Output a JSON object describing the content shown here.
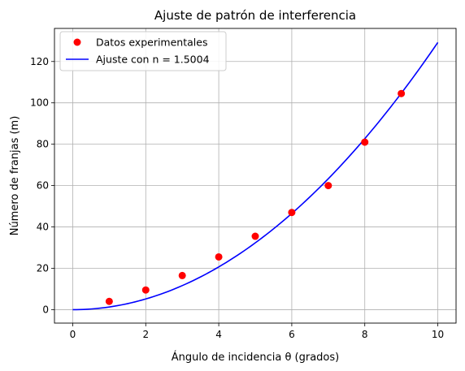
{
  "chart_data": {
    "type": "scatter",
    "title": "Ajuste de patrón de interferencia",
    "xlabel": "Ángulo de incidencia θ (grados)",
    "ylabel": "Número de franjas (m)",
    "xlim": [
      -0.5,
      10.5
    ],
    "ylim": [
      -6.5,
      136
    ],
    "xticks": [
      0,
      2,
      4,
      6,
      8,
      10
    ],
    "yticks": [
      0,
      20,
      40,
      60,
      80,
      100,
      120
    ],
    "grid": true,
    "legend_position": "top-left",
    "series": [
      {
        "name": "Datos experimentales",
        "kind": "scatter",
        "color": "#ff0000",
        "x": [
          1,
          2,
          3,
          4,
          5,
          6,
          7,
          8,
          9
        ],
        "y": [
          4,
          9.5,
          16.5,
          25.5,
          35.5,
          47,
          60,
          81,
          104.5
        ]
      },
      {
        "name": "Ajuste con n = 1.5004",
        "kind": "line",
        "color": "#0000ff",
        "x_range": [
          0,
          10
        ],
        "y_at_x_max": 129.2,
        "shape": "quadratic"
      }
    ]
  }
}
